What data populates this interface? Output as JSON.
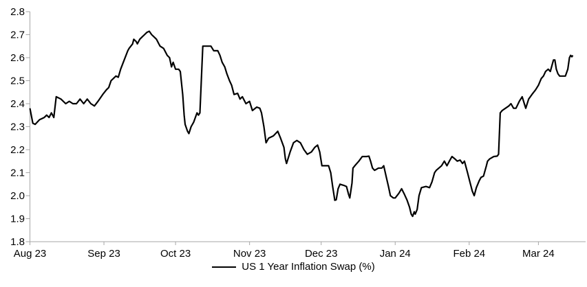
{
  "chart_data": {
    "type": "line",
    "title": "",
    "legend": {
      "label": "US 1 Year Inflation Swap (%)",
      "position": "bottom-center"
    },
    "grid": false,
    "colors": {
      "line": "#000000",
      "axis": "#a6a6a6",
      "text": "#000000",
      "background": "#ffffff"
    },
    "x_axis": {
      "tick_labels": [
        "Aug 23",
        "Sep 23",
        "Oct 23",
        "Nov 23",
        "Dec 23",
        "Jan 24",
        "Feb 24",
        "Mar 24"
      ],
      "tick_days": [
        0,
        31,
        61,
        92,
        122,
        153,
        184,
        213
      ]
    },
    "y_axis": {
      "min": 1.8,
      "max": 2.8,
      "tick_step": 0.1,
      "tick_labels": [
        "2.8",
        "2.7",
        "2.6",
        "2.5",
        "2.4",
        "2.3",
        "2.2",
        "2.1",
        "2.0",
        "1.9",
        "1.8"
      ]
    },
    "series": [
      {
        "name": "US 1 Year Inflation Swap (%)",
        "x_unit": "days since Aug 1 2023",
        "points": [
          [
            0,
            2.38
          ],
          [
            1.2,
            2.315
          ],
          [
            2.2,
            2.31
          ],
          [
            4,
            2.33
          ],
          [
            6,
            2.34
          ],
          [
            7,
            2.35
          ],
          [
            8,
            2.34
          ],
          [
            9,
            2.36
          ],
          [
            10,
            2.34
          ],
          [
            11,
            2.43
          ],
          [
            13,
            2.42
          ],
          [
            15,
            2.4
          ],
          [
            16.5,
            2.41
          ],
          [
            18,
            2.4
          ],
          [
            19.5,
            2.4
          ],
          [
            21,
            2.42
          ],
          [
            22.5,
            2.4
          ],
          [
            24,
            2.42
          ],
          [
            25.5,
            2.4
          ],
          [
            27,
            2.39
          ],
          [
            28.5,
            2.41
          ],
          [
            30.5,
            2.44
          ],
          [
            32,
            2.46
          ],
          [
            33,
            2.47
          ],
          [
            34,
            2.5
          ],
          [
            35,
            2.51
          ],
          [
            36,
            2.52
          ],
          [
            37,
            2.515
          ],
          [
            38,
            2.55
          ],
          [
            39.5,
            2.59
          ],
          [
            41,
            2.63
          ],
          [
            41.5,
            2.64
          ],
          [
            43,
            2.66
          ],
          [
            43.5,
            2.68
          ],
          [
            44.5,
            2.67
          ],
          [
            45,
            2.66
          ],
          [
            46,
            2.68
          ],
          [
            47,
            2.69
          ],
          [
            48,
            2.7
          ],
          [
            49,
            2.71
          ],
          [
            50,
            2.715
          ],
          [
            51,
            2.7
          ],
          [
            52,
            2.69
          ],
          [
            53,
            2.68
          ],
          [
            54,
            2.66
          ],
          [
            54.5,
            2.65
          ],
          [
            56,
            2.64
          ],
          [
            56.5,
            2.63
          ],
          [
            57.5,
            2.61
          ],
          [
            58.5,
            2.6
          ],
          [
            59.3,
            2.56
          ],
          [
            60,
            2.58
          ],
          [
            61,
            2.55
          ],
          [
            62.3,
            2.55
          ],
          [
            63,
            2.54
          ],
          [
            64,
            2.44
          ],
          [
            64.6,
            2.35
          ],
          [
            65,
            2.31
          ],
          [
            66,
            2.28
          ],
          [
            66.6,
            2.27
          ],
          [
            67.5,
            2.3
          ],
          [
            68.6,
            2.32
          ],
          [
            70,
            2.36
          ],
          [
            70.6,
            2.35
          ],
          [
            71.2,
            2.36
          ],
          [
            72.4,
            2.65
          ],
          [
            73.5,
            2.65
          ],
          [
            75.8,
            2.65
          ],
          [
            77,
            2.63
          ],
          [
            78.7,
            2.63
          ],
          [
            79.6,
            2.61
          ],
          [
            80.5,
            2.58
          ],
          [
            81.6,
            2.56
          ],
          [
            82.5,
            2.53
          ],
          [
            83.6,
            2.5
          ],
          [
            84.5,
            2.48
          ],
          [
            85.5,
            2.44
          ],
          [
            87,
            2.445
          ],
          [
            88,
            2.42
          ],
          [
            89,
            2.43
          ],
          [
            90.5,
            2.4
          ],
          [
            92,
            2.41
          ],
          [
            93.2,
            2.37
          ],
          [
            95,
            2.385
          ],
          [
            96.3,
            2.38
          ],
          [
            97,
            2.36
          ],
          [
            98,
            2.3
          ],
          [
            98.9,
            2.23
          ],
          [
            100,
            2.25
          ],
          [
            102,
            2.26
          ],
          [
            103.8,
            2.28
          ],
          [
            105,
            2.25
          ],
          [
            106.4,
            2.21
          ],
          [
            107,
            2.16
          ],
          [
            107.5,
            2.14
          ],
          [
            109,
            2.19
          ],
          [
            110.4,
            2.23
          ],
          [
            111.8,
            2.24
          ],
          [
            113.3,
            2.23
          ],
          [
            114.8,
            2.2
          ],
          [
            116.2,
            2.18
          ],
          [
            117.9,
            2.19
          ],
          [
            119.3,
            2.21
          ],
          [
            120.5,
            2.22
          ],
          [
            121.4,
            2.19
          ],
          [
            122.3,
            2.13
          ],
          [
            124,
            2.13
          ],
          [
            125.1,
            2.13
          ],
          [
            126,
            2.1
          ],
          [
            126.8,
            2.04
          ],
          [
            127.7,
            1.98
          ],
          [
            128.3,
            1.982
          ],
          [
            129.1,
            2.03
          ],
          [
            129.9,
            2.05
          ],
          [
            131.4,
            2.045
          ],
          [
            132.6,
            2.04
          ],
          [
            133.5,
            2.005
          ],
          [
            134,
            1.99
          ],
          [
            134.9,
            2.055
          ],
          [
            135.3,
            2.12
          ],
          [
            136.1,
            2.13
          ],
          [
            137.8,
            2.15
          ],
          [
            139.2,
            2.17
          ],
          [
            141,
            2.17
          ],
          [
            142,
            2.172
          ],
          [
            142.7,
            2.15
          ],
          [
            143.5,
            2.12
          ],
          [
            144.4,
            2.11
          ],
          [
            146,
            2.12
          ],
          [
            147.4,
            2.12
          ],
          [
            148.2,
            2.13
          ],
          [
            149.3,
            2.08
          ],
          [
            150.2,
            2.04
          ],
          [
            151,
            2.0
          ],
          [
            152.2,
            1.99
          ],
          [
            153,
            1.99
          ],
          [
            154.5,
            2.01
          ],
          [
            155.7,
            2.03
          ],
          [
            156.9,
            2.005
          ],
          [
            158,
            1.98
          ],
          [
            159,
            1.95
          ],
          [
            159.7,
            1.92
          ],
          [
            160.3,
            1.91
          ],
          [
            161,
            1.93
          ],
          [
            161.4,
            1.92
          ],
          [
            162.2,
            1.94
          ],
          [
            163,
            2.0
          ],
          [
            164,
            2.035
          ],
          [
            165.9,
            2.04
          ],
          [
            167.4,
            2.035
          ],
          [
            168.4,
            2.06
          ],
          [
            169.5,
            2.1
          ],
          [
            170.2,
            2.11
          ],
          [
            171.3,
            2.12
          ],
          [
            172.4,
            2.13
          ],
          [
            173.6,
            2.15
          ],
          [
            174.7,
            2.13
          ],
          [
            175.7,
            2.15
          ],
          [
            176.8,
            2.17
          ],
          [
            178,
            2.16
          ],
          [
            179,
            2.15
          ],
          [
            180.2,
            2.155
          ],
          [
            181.2,
            2.14
          ],
          [
            182,
            2.15
          ],
          [
            183.3,
            2.1
          ],
          [
            184.3,
            2.06
          ],
          [
            185.3,
            2.02
          ],
          [
            186.1,
            2.0
          ],
          [
            187,
            2.035
          ],
          [
            188.2,
            2.065
          ],
          [
            189,
            2.08
          ],
          [
            190,
            2.085
          ],
          [
            191.2,
            2.13
          ],
          [
            191.7,
            2.15
          ],
          [
            192.6,
            2.16
          ],
          [
            194.3,
            2.17
          ],
          [
            195.7,
            2.172
          ],
          [
            196.3,
            2.18
          ],
          [
            197,
            2.36
          ],
          [
            197.8,
            2.37
          ],
          [
            199.2,
            2.38
          ],
          [
            200.6,
            2.39
          ],
          [
            201.5,
            2.4
          ],
          [
            202.6,
            2.38
          ],
          [
            203.6,
            2.38
          ],
          [
            205,
            2.41
          ],
          [
            206.2,
            2.43
          ],
          [
            207.1,
            2.4
          ],
          [
            207.7,
            2.38
          ],
          [
            208.9,
            2.42
          ],
          [
            210.3,
            2.44
          ],
          [
            211.8,
            2.46
          ],
          [
            213,
            2.48
          ],
          [
            214.2,
            2.51
          ],
          [
            215.1,
            2.52
          ],
          [
            216,
            2.54
          ],
          [
            217.1,
            2.55
          ],
          [
            218,
            2.54
          ],
          [
            219.3,
            2.59
          ],
          [
            219.9,
            2.59
          ],
          [
            220.5,
            2.55
          ],
          [
            221.2,
            2.53
          ],
          [
            221.9,
            2.52
          ],
          [
            223.2,
            2.52
          ],
          [
            224.3,
            2.52
          ],
          [
            225.3,
            2.55
          ],
          [
            226,
            2.6
          ],
          [
            226.5,
            2.61
          ],
          [
            227,
            2.604
          ],
          [
            227.4,
            2.61
          ]
        ]
      }
    ]
  }
}
